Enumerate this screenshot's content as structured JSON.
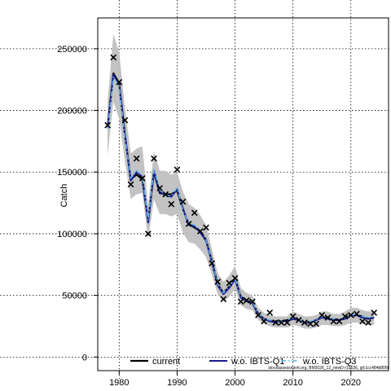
{
  "chart_data": {
    "type": "line",
    "title": "",
    "xlabel": "",
    "ylabel": "Catch",
    "xlim": [
      1976.3,
      2026.5
    ],
    "ylim": [
      -11000,
      275000
    ],
    "xticks": [
      1980,
      1990,
      2000,
      2010,
      2020
    ],
    "yticks": [
      0,
      50000,
      100000,
      150000,
      200000,
      250000
    ],
    "xtick_labels": [
      "1980",
      "1990",
      "2000",
      "2010",
      "2020"
    ],
    "ytick_labels": [
      "0",
      "50000",
      "100000",
      "150000",
      "200000",
      "250000"
    ],
    "grid": true,
    "legend_position": "bottom-center",
    "band_color": "#c0c0c0",
    "x": [
      1978,
      1979,
      1980,
      1981,
      1982,
      1983,
      1984,
      1985,
      1986,
      1987,
      1988,
      1989,
      1990,
      1991,
      1992,
      1993,
      1994,
      1995,
      1996,
      1997,
      1998,
      1999,
      2000,
      2001,
      2002,
      2003,
      2004,
      2005,
      2006,
      2007,
      2008,
      2009,
      2010,
      2011,
      2012,
      2013,
      2014,
      2015,
      2016,
      2017,
      2018,
      2019,
      2020,
      2021,
      2022,
      2023,
      2024
    ],
    "band_lower": [
      163000,
      207000,
      193000,
      158000,
      128000,
      132000,
      133000,
      95000,
      128000,
      116000,
      116000,
      114000,
      116000,
      101000,
      93000,
      92000,
      87000,
      81000,
      67000,
      51000,
      45000,
      49000,
      55000,
      42000,
      39000,
      38000,
      30000,
      27000,
      25000,
      24000,
      24000,
      24000,
      26000,
      25000,
      23000,
      23000,
      24000,
      26000,
      26000,
      25000,
      25000,
      26000,
      28000,
      28000,
      27000,
      26000,
      26000
    ],
    "band_upper": [
      207000,
      262000,
      247000,
      202000,
      165000,
      169000,
      171000,
      123000,
      167000,
      151000,
      151000,
      148000,
      150000,
      134000,
      124000,
      121000,
      115000,
      107000,
      88000,
      68000,
      61000,
      66000,
      74000,
      56000,
      52000,
      50000,
      40000,
      36000,
      34000,
      33000,
      33000,
      33000,
      37000,
      35000,
      33000,
      33000,
      34000,
      37000,
      37000,
      35000,
      35000,
      37000,
      40000,
      40000,
      38000,
      37000,
      37000
    ],
    "series": [
      {
        "name": "current",
        "color": "#000000",
        "values": [
          187000,
          230000,
          222000,
          180000,
          144000,
          148000,
          144000,
          110000,
          150000,
          133000,
          132000,
          132000,
          135000,
          120000,
          108000,
          105000,
          102000,
          95000,
          78000,
          59000,
          52000,
          57000,
          64000,
          49000,
          46000,
          44000,
          35000,
          31000,
          29000,
          29000,
          29000,
          30000,
          31000,
          30000,
          28000,
          28000,
          30000,
          32000,
          32000,
          30000,
          30000,
          32000,
          34000,
          34000,
          33000,
          31000,
          32000
        ]
      },
      {
        "name": "w.o. IBTS-Q1",
        "color": "#1a1a8c",
        "values": [
          186000,
          229000,
          221000,
          179000,
          143000,
          150000,
          146000,
          109000,
          151000,
          134000,
          131000,
          130000,
          136000,
          121000,
          107000,
          106000,
          101000,
          94000,
          77000,
          58000,
          51000,
          56000,
          63000,
          48000,
          45000,
          44000,
          34000,
          31000,
          29000,
          28000,
          29000,
          29000,
          31000,
          30000,
          28000,
          28000,
          30000,
          32000,
          31000,
          30000,
          30000,
          31000,
          34000,
          34000,
          32000,
          31000,
          32000
        ]
      },
      {
        "name": "w.o. IBTS-Q3",
        "color": "#5fb3e3",
        "values": [
          185000,
          227000,
          220000,
          178000,
          145000,
          151000,
          147000,
          111000,
          152000,
          136000,
          131000,
          131000,
          137000,
          119000,
          109000,
          107000,
          103000,
          95000,
          78000,
          59000,
          52000,
          57000,
          64000,
          49000,
          46000,
          45000,
          35000,
          31000,
          30000,
          29000,
          29000,
          30000,
          32000,
          30000,
          29000,
          29000,
          30000,
          33000,
          32000,
          31000,
          31000,
          32000,
          34000,
          35000,
          33000,
          32000,
          33000
        ]
      }
    ],
    "observed": {
      "marker": "x",
      "x": [
        1978,
        1979,
        1980,
        1981,
        1982,
        1983,
        1984,
        1985,
        1986,
        1987,
        1988,
        1989,
        1990,
        1991,
        1992,
        1993,
        1994,
        1995,
        1996,
        1997,
        1998,
        1999,
        2000,
        2001,
        2002,
        2003,
        2004,
        2005,
        2006,
        2007,
        2008,
        2009,
        2010,
        2011,
        2012,
        2013,
        2014,
        2015,
        2016,
        2017,
        2018,
        2019,
        2020,
        2021,
        2022,
        2023,
        2024
      ],
      "y": [
        188000,
        243000,
        223000,
        192000,
        140000,
        161000,
        145000,
        100000,
        161000,
        137000,
        132000,
        124000,
        152000,
        126000,
        108000,
        117000,
        102000,
        105000,
        76000,
        61000,
        47000,
        60000,
        64000,
        45000,
        46000,
        45000,
        34000,
        29000,
        36000,
        28000,
        28000,
        28000,
        33000,
        30000,
        28000,
        27000,
        27000,
        34000,
        32000,
        29000,
        29000,
        33000,
        34000,
        35000,
        29000,
        28000,
        36000
      ]
    },
    "footnote": "stockassessment.org, BM2026_12_newD-r19636, git:1cc484b806f"
  }
}
